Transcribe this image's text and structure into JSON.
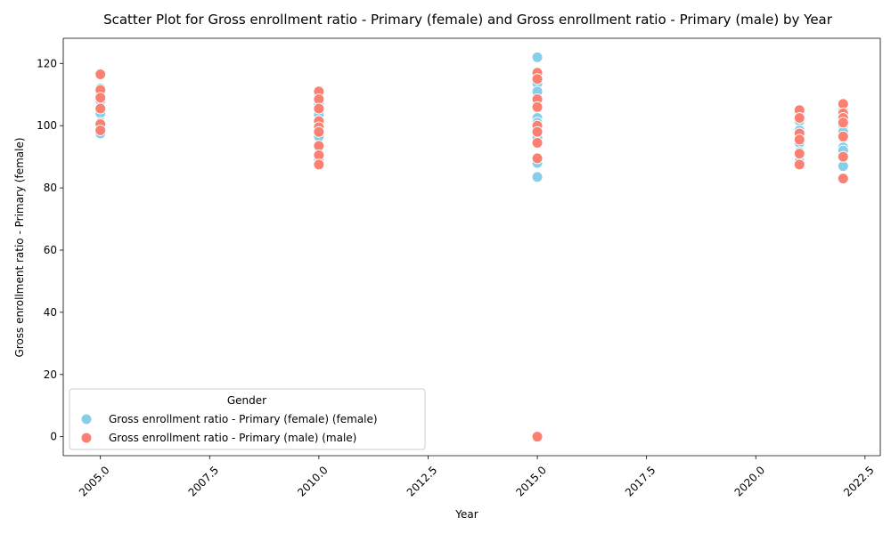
{
  "chart_data": {
    "type": "scatter",
    "title": "Scatter Plot for Gross enrollment ratio - Primary (female) and Gross enrollment ratio - Primary (male) by Year",
    "xlabel": "Year",
    "ylabel": "Gross enrollment ratio - Primary (female)",
    "xlim": [
      2004.15,
      2022.85
    ],
    "ylim": [
      -6.1,
      128.1
    ],
    "x_ticks": [
      2005.0,
      2007.5,
      2010.0,
      2012.5,
      2015.0,
      2017.5,
      2020.0,
      2022.5
    ],
    "x_tick_labels": [
      "2005.0",
      "2007.5",
      "2010.0",
      "2012.5",
      "2015.0",
      "2017.5",
      "2020.0",
      "2022.5"
    ],
    "y_ticks": [
      0,
      20,
      40,
      60,
      80,
      100,
      120
    ],
    "y_tick_labels": [
      "0",
      "20",
      "40",
      "60",
      "80",
      "100",
      "120"
    ],
    "grid": false,
    "legend": {
      "title": "Gender",
      "position": "lower-left"
    },
    "series": [
      {
        "name": "Gross enrollment ratio - Primary (female) (female)",
        "color": "#87ceeb",
        "points": [
          [
            2005,
            112.0
          ],
          [
            2005,
            110.5
          ],
          [
            2005,
            108.0
          ],
          [
            2005,
            104.0
          ],
          [
            2005,
            101.0
          ],
          [
            2005,
            99.5
          ],
          [
            2005,
            97.5
          ],
          [
            2010,
            110.0
          ],
          [
            2010,
            107.0
          ],
          [
            2010,
            103.5
          ],
          [
            2010,
            100.5
          ],
          [
            2010,
            98.5
          ],
          [
            2010,
            96.5
          ],
          [
            2010,
            93.0
          ],
          [
            2010,
            89.0
          ],
          [
            2015,
            122.0
          ],
          [
            2015,
            113.5
          ],
          [
            2015,
            111.0
          ],
          [
            2015,
            107.0
          ],
          [
            2015,
            102.5
          ],
          [
            2015,
            101.0
          ],
          [
            2015,
            99.0
          ],
          [
            2015,
            96.0
          ],
          [
            2015,
            88.0
          ],
          [
            2015,
            83.5
          ],
          [
            2021,
            104.0
          ],
          [
            2021,
            101.5
          ],
          [
            2021,
            98.5
          ],
          [
            2021,
            94.5
          ],
          [
            2021,
            91.5
          ],
          [
            2021,
            88.5
          ],
          [
            2022,
            105.0
          ],
          [
            2022,
            102.5
          ],
          [
            2022,
            100.0
          ],
          [
            2022,
            98.0
          ],
          [
            2022,
            93.0
          ],
          [
            2022,
            92.0
          ],
          [
            2022,
            87.0
          ]
        ]
      },
      {
        "name": "Gross enrollment ratio - Primary (male) (male)",
        "color": "#fa8072",
        "points": [
          [
            2005,
            116.5
          ],
          [
            2005,
            111.5
          ],
          [
            2005,
            109.0
          ],
          [
            2005,
            105.5
          ],
          [
            2005,
            100.5
          ],
          [
            2005,
            98.5
          ],
          [
            2010,
            111.0
          ],
          [
            2010,
            108.5
          ],
          [
            2010,
            105.5
          ],
          [
            2010,
            101.5
          ],
          [
            2010,
            99.5
          ],
          [
            2010,
            98.0
          ],
          [
            2010,
            93.5
          ],
          [
            2010,
            90.5
          ],
          [
            2010,
            87.5
          ],
          [
            2015,
            117.0
          ],
          [
            2015,
            115.0
          ],
          [
            2015,
            108.5
          ],
          [
            2015,
            106.0
          ],
          [
            2015,
            100.0
          ],
          [
            2015,
            98.0
          ],
          [
            2015,
            94.5
          ],
          [
            2015,
            89.5
          ],
          [
            2015,
            0.0
          ],
          [
            2021,
            105.0
          ],
          [
            2021,
            102.5
          ],
          [
            2021,
            97.5
          ],
          [
            2021,
            95.5
          ],
          [
            2021,
            91.0
          ],
          [
            2021,
            87.5
          ],
          [
            2022,
            107.0
          ],
          [
            2022,
            104.0
          ],
          [
            2022,
            102.5
          ],
          [
            2022,
            101.0
          ],
          [
            2022,
            96.5
          ],
          [
            2022,
            90.0
          ],
          [
            2022,
            83.0
          ]
        ]
      }
    ]
  }
}
